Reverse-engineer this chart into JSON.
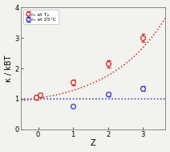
{
  "title": "",
  "xlabel": "Z",
  "ylabel": "κ / kBT",
  "xlim": [
    -0.5,
    3.65
  ],
  "ylim": [
    0,
    4
  ],
  "yticks": [
    0,
    1,
    2,
    3,
    4
  ],
  "xticks": [
    0,
    1,
    2,
    3
  ],
  "red_x": [
    -0.05,
    0.05,
    1.0,
    2.0,
    3.0
  ],
  "red_y": [
    1.05,
    1.12,
    1.55,
    2.15,
    3.0
  ],
  "red_yerr": [
    0.07,
    0.07,
    0.09,
    0.12,
    0.13
  ],
  "blue_x": [
    1.0,
    2.0,
    3.0
  ],
  "blue_y": [
    0.77,
    1.15,
    1.33
  ],
  "blue_yerr_lo": [
    0.0,
    0.07,
    0.08
  ],
  "blue_yerr_hi": [
    0.0,
    0.07,
    0.08
  ],
  "red_dot_color": "#dd2222",
  "blue_dot_color": "#3333cc",
  "red_curve_color": "#dd2222",
  "blue_line_color": "#3333cc",
  "legend_label_red": "rₑ at Tₚ",
  "legend_label_blue": "rₑ at 25°C",
  "bg_color": "#f2f2ee",
  "figsize": [
    2.12,
    1.89
  ],
  "dpi": 100
}
